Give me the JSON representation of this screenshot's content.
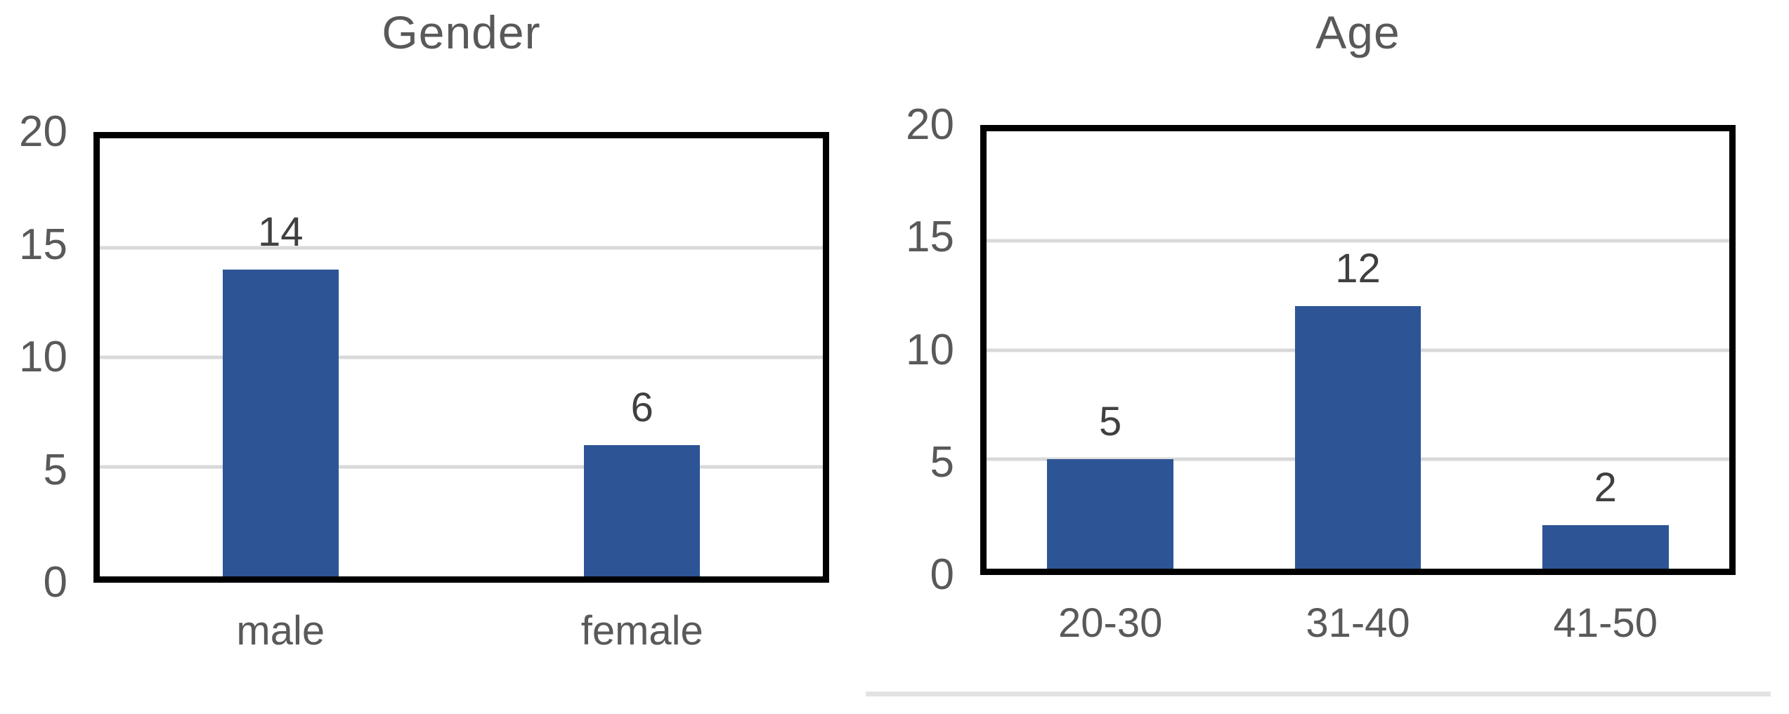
{
  "colors": {
    "background": "#ffffff",
    "bar": "#2d5596",
    "gridline": "#d9d9d9",
    "plot_border": "#000000",
    "axis_text": "#595959",
    "title_text": "#595959",
    "data_label_text": "#404040",
    "divider": "#e3e3e3"
  },
  "chart_data": [
    {
      "id": "gender",
      "type": "bar",
      "title": "Gender",
      "categories": [
        "male",
        "female"
      ],
      "values": [
        14,
        6
      ],
      "xlabel": "",
      "ylabel": "",
      "ylim": [
        0,
        20
      ],
      "yticks": [
        0,
        5,
        10,
        15,
        20
      ],
      "grid": true,
      "legend": "none",
      "data_labels": [
        14,
        6
      ],
      "bar_color": "#2d5596",
      "bar_width_frac": 0.32
    },
    {
      "id": "age",
      "type": "bar",
      "title": "Age",
      "categories": [
        "20-30",
        "31-40",
        "41-50"
      ],
      "values": [
        5,
        12,
        2
      ],
      "xlabel": "",
      "ylabel": "",
      "ylim": [
        0,
        20
      ],
      "yticks": [
        0,
        5,
        10,
        15,
        20
      ],
      "grid": true,
      "legend": "none",
      "data_labels": [
        5,
        12,
        2
      ],
      "bar_color": "#2d5596",
      "bar_width_frac": 0.51
    }
  ],
  "divider": {
    "visible": true
  }
}
